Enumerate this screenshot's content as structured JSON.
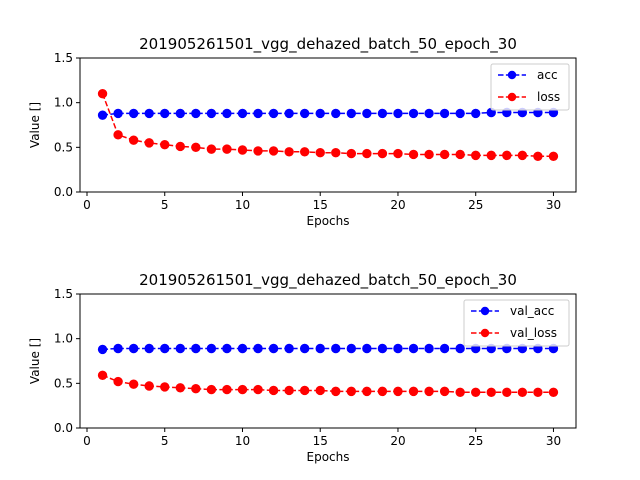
{
  "chart_data": [
    {
      "type": "line",
      "title": "201905261501_vgg_dehazed_batch_50_epoch_30",
      "xlabel": "Epochs",
      "ylabel": "Value []",
      "xlim": [
        -0.45,
        31.45
      ],
      "ylim": [
        0.0,
        1.5
      ],
      "xticks": [
        0,
        5,
        10,
        15,
        20,
        25,
        30
      ],
      "yticks": [
        0.0,
        0.5,
        1.0,
        1.5
      ],
      "ytick_labels": [
        "0.0",
        "0.5",
        "1.0",
        "1.5"
      ],
      "grid": false,
      "legend_position": "top-right",
      "x": [
        1,
        2,
        3,
        4,
        5,
        6,
        7,
        8,
        9,
        10,
        11,
        12,
        13,
        14,
        15,
        16,
        17,
        18,
        19,
        20,
        21,
        22,
        23,
        24,
        25,
        26,
        27,
        28,
        29,
        30
      ],
      "series": [
        {
          "name": "acc",
          "color": "#0000ff",
          "values": [
            0.86,
            0.88,
            0.88,
            0.88,
            0.88,
            0.88,
            0.88,
            0.88,
            0.88,
            0.88,
            0.88,
            0.88,
            0.88,
            0.88,
            0.88,
            0.88,
            0.88,
            0.88,
            0.88,
            0.88,
            0.88,
            0.88,
            0.88,
            0.88,
            0.88,
            0.89,
            0.89,
            0.89,
            0.89,
            0.89
          ]
        },
        {
          "name": "loss",
          "color": "#ff0000",
          "values": [
            1.1,
            0.64,
            0.58,
            0.55,
            0.53,
            0.51,
            0.5,
            0.48,
            0.48,
            0.47,
            0.46,
            0.46,
            0.45,
            0.45,
            0.44,
            0.44,
            0.43,
            0.43,
            0.43,
            0.43,
            0.42,
            0.42,
            0.42,
            0.42,
            0.41,
            0.41,
            0.41,
            0.41,
            0.4,
            0.4
          ]
        }
      ]
    },
    {
      "type": "line",
      "title": "201905261501_vgg_dehazed_batch_50_epoch_30",
      "xlabel": "Epochs",
      "ylabel": "Value []",
      "xlim": [
        -0.45,
        31.45
      ],
      "ylim": [
        0.0,
        1.5
      ],
      "xticks": [
        0,
        5,
        10,
        15,
        20,
        25,
        30
      ],
      "yticks": [
        0.0,
        0.5,
        1.0,
        1.5
      ],
      "ytick_labels": [
        "0.0",
        "0.5",
        "1.0",
        "1.5"
      ],
      "grid": false,
      "legend_position": "top-right",
      "x": [
        1,
        2,
        3,
        4,
        5,
        6,
        7,
        8,
        9,
        10,
        11,
        12,
        13,
        14,
        15,
        16,
        17,
        18,
        19,
        20,
        21,
        22,
        23,
        24,
        25,
        26,
        27,
        28,
        29,
        30
      ],
      "series": [
        {
          "name": "val_acc",
          "color": "#0000ff",
          "values": [
            0.88,
            0.89,
            0.89,
            0.89,
            0.89,
            0.89,
            0.89,
            0.89,
            0.89,
            0.89,
            0.89,
            0.89,
            0.89,
            0.89,
            0.89,
            0.89,
            0.89,
            0.89,
            0.89,
            0.89,
            0.89,
            0.89,
            0.89,
            0.89,
            0.89,
            0.89,
            0.89,
            0.89,
            0.89,
            0.89
          ]
        },
        {
          "name": "val_loss",
          "color": "#ff0000",
          "values": [
            0.59,
            0.52,
            0.49,
            0.47,
            0.46,
            0.45,
            0.44,
            0.43,
            0.43,
            0.43,
            0.43,
            0.42,
            0.42,
            0.42,
            0.42,
            0.41,
            0.41,
            0.41,
            0.41,
            0.41,
            0.41,
            0.41,
            0.41,
            0.4,
            0.4,
            0.4,
            0.4,
            0.4,
            0.4,
            0.4
          ]
        }
      ]
    }
  ]
}
